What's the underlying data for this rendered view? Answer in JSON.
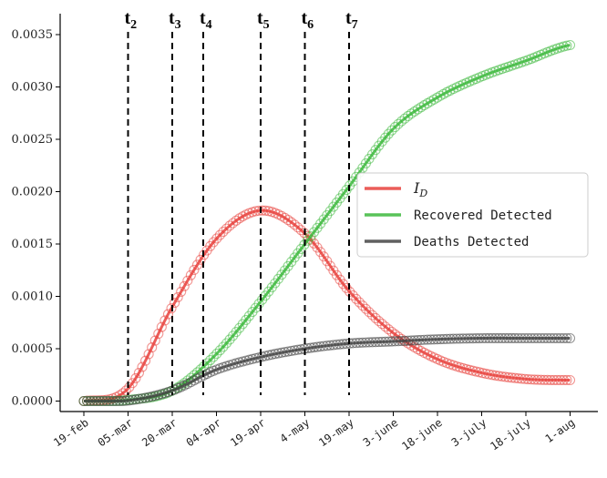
{
  "chart_data": {
    "type": "line",
    "x": [
      "19-feb",
      "05-mar",
      "20-mar",
      "04-apr",
      "19-apr",
      "4-may",
      "19-may",
      "3-june",
      "18-june",
      "3-july",
      "18-july",
      "1-aug"
    ],
    "x_tick_labels": [
      "19-feb",
      "05-mar",
      "20-mar",
      "04-apr",
      "19-apr",
      "4-may",
      "19-may",
      "3-june",
      "18-june",
      "3-july",
      "18-july",
      "1-aug"
    ],
    "ylim": [
      -0.0001,
      0.0037
    ],
    "y_ticks": [
      "0.0000",
      "0.0005",
      "0.0010",
      "0.0015",
      "0.0020",
      "0.0025",
      "0.0030",
      "0.0035"
    ],
    "y_tick_values": [
      0,
      0.0005,
      0.001,
      0.0015,
      0.002,
      0.0025,
      0.003,
      0.0035
    ],
    "series": [
      {
        "name": "I_D",
        "name_main": "I",
        "name_sub": "D",
        "color": "#e8413c",
        "values": [
          0.0,
          0.00012,
          0.0009,
          0.00155,
          0.00182,
          0.0016,
          0.00105,
          0.00065,
          0.0004,
          0.00027,
          0.00021,
          0.0002
        ]
      },
      {
        "name": "Recovered Detected",
        "color": "#3cb83c",
        "values": [
          0.0,
          1e-05,
          0.0001,
          0.00045,
          0.00095,
          0.0015,
          0.00205,
          0.0026,
          0.0029,
          0.0031,
          0.00325,
          0.0034
        ]
      },
      {
        "name": "Deaths Detected",
        "color": "#444444",
        "values": [
          0.0,
          5e-06,
          0.0001,
          0.0003,
          0.00042,
          0.0005,
          0.00055,
          0.00057,
          0.00059,
          0.0006,
          0.0006,
          0.0006
        ]
      }
    ],
    "vertical_lines": [
      {
        "label": "t",
        "sub": "2",
        "x": "05-mar"
      },
      {
        "label": "t",
        "sub": "3",
        "x": "20-mar"
      },
      {
        "label": "t",
        "sub": "4",
        "x": "28-mar"
      },
      {
        "label": "t",
        "sub": "5",
        "x": "19-apr"
      },
      {
        "label": "t",
        "sub": "6",
        "x": "4-may"
      },
      {
        "label": "t",
        "sub": "7",
        "x": "19-may"
      }
    ],
    "legend_position": "center-right",
    "grid": false
  }
}
